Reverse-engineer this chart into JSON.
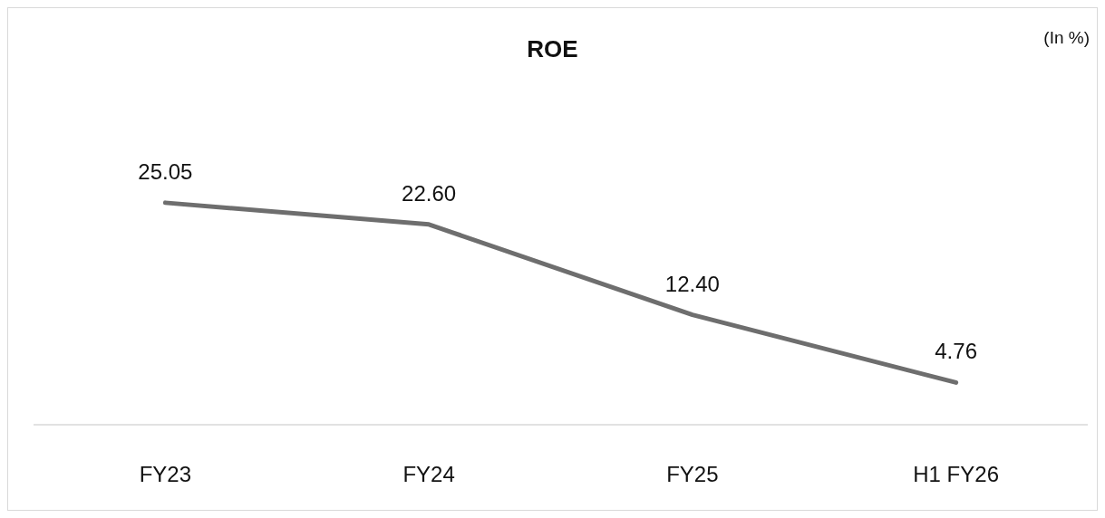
{
  "chart_data": {
    "type": "line",
    "title": "ROE",
    "annotations": [
      "(In %)"
    ],
    "categories": [
      "FY23",
      "FY24",
      "FY25",
      "H1 FY26"
    ],
    "series": [
      {
        "color": "#6e6e6e",
        "values": [
          25.05,
          22.6,
          12.4,
          4.76
        ],
        "value_labels": [
          "25.05",
          "22.60",
          "12.40",
          "4.76"
        ]
      }
    ],
    "grid": false,
    "legend": false,
    "marker": "none",
    "line_style": "solid"
  }
}
